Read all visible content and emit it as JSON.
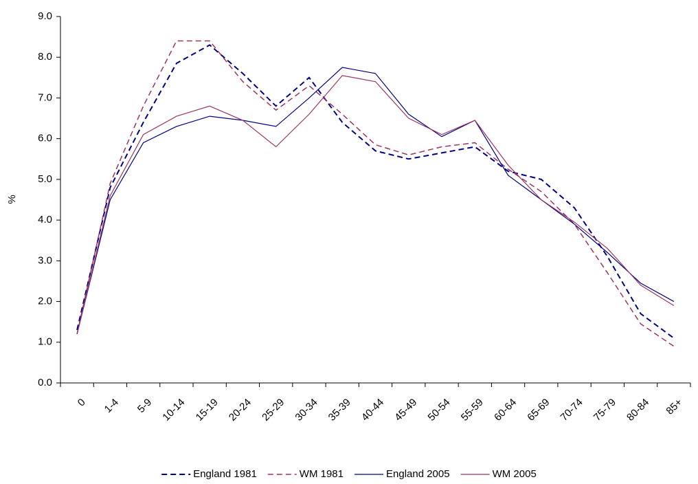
{
  "chart_data": {
    "type": "line",
    "y_label": "%",
    "categories": [
      "0",
      "1-4",
      "5-9",
      "10-14",
      "15-19",
      "20-24",
      "25-29",
      "30-34",
      "35-39",
      "40-44",
      "45-49",
      "50-54",
      "55-59",
      "60-64",
      "65-69",
      "70-74",
      "75-79",
      "80-84",
      "85+"
    ],
    "series": [
      {
        "name": "England 1981",
        "color": "#000080",
        "dashed": true,
        "width": 2,
        "values": [
          1.3,
          4.8,
          6.4,
          7.85,
          8.3,
          7.6,
          6.8,
          7.5,
          6.4,
          5.7,
          5.5,
          5.65,
          5.8,
          5.2,
          5.0,
          4.3,
          3.1,
          1.7,
          1.1
        ]
      },
      {
        "name": "WM 1981",
        "color": "#993366",
        "dashed": true,
        "width": 1.5,
        "values": [
          1.2,
          4.9,
          6.8,
          8.4,
          8.4,
          7.4,
          6.7,
          7.3,
          6.6,
          5.85,
          5.6,
          5.8,
          5.9,
          5.25,
          4.7,
          3.9,
          2.7,
          1.45,
          0.9
        ]
      },
      {
        "name": "England 2005",
        "color": "#000080",
        "dashed": false,
        "width": 1.2,
        "values": [
          1.2,
          4.5,
          5.9,
          6.3,
          6.55,
          6.45,
          6.3,
          7.0,
          7.75,
          7.6,
          6.6,
          6.05,
          6.45,
          5.1,
          4.5,
          3.9,
          3.2,
          2.45,
          2.0
        ]
      },
      {
        "name": "WM 2005",
        "color": "#993366",
        "dashed": false,
        "width": 1.2,
        "values": [
          1.2,
          4.6,
          6.1,
          6.55,
          6.8,
          6.45,
          5.8,
          6.6,
          7.55,
          7.4,
          6.5,
          6.1,
          6.45,
          5.35,
          4.5,
          3.95,
          3.3,
          2.4,
          1.9
        ]
      }
    ],
    "ylim": [
      0,
      9
    ],
    "yticks": [
      {
        "value": 0,
        "label": "0.0"
      },
      {
        "value": 1,
        "label": "1.0"
      },
      {
        "value": 2,
        "label": "2.0"
      },
      {
        "value": 3,
        "label": "3.0"
      },
      {
        "value": 4,
        "label": "4.0"
      },
      {
        "value": 5,
        "label": "5.0"
      },
      {
        "value": 6,
        "label": "6.0"
      },
      {
        "value": 7,
        "label": "7.0"
      },
      {
        "value": 8,
        "label": "8.0"
      },
      {
        "value": 9,
        "label": "9.0"
      }
    ],
    "grid": false,
    "legend": "bottom"
  }
}
